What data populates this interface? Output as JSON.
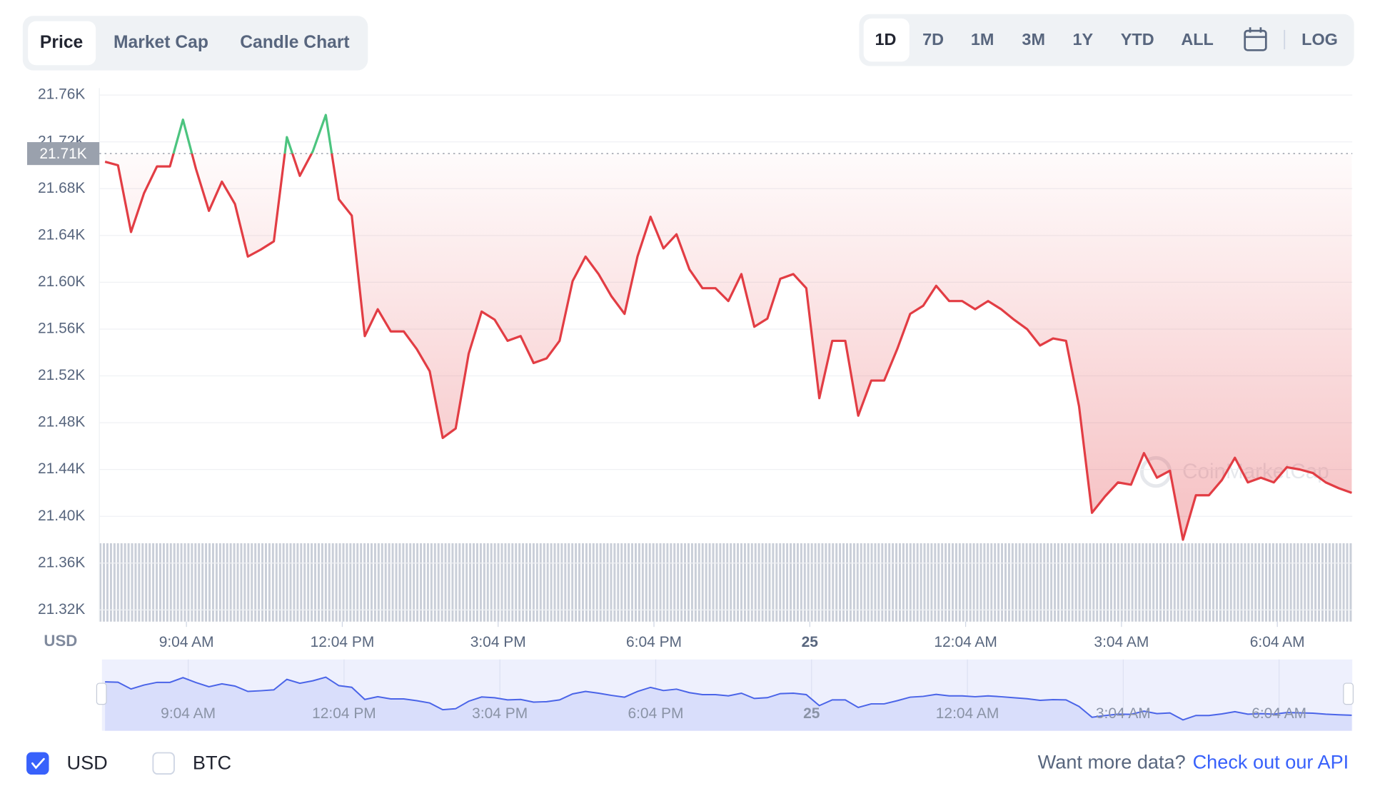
{
  "tabs": [
    "Price",
    "Market Cap",
    "Candle Chart"
  ],
  "ranges": [
    "1D",
    "7D",
    "1M",
    "3M",
    "1Y",
    "YTD",
    "ALL"
  ],
  "log_button": "LOG",
  "currencies": [
    {
      "label": "USD",
      "checked": true
    },
    {
      "label": "BTC",
      "checked": false
    }
  ],
  "footer": {
    "prompt": "Want more data?",
    "link": "Check out our API"
  },
  "chart_data": {
    "type": "line",
    "y_unit": "USD",
    "watermark": "CoinMarketCap",
    "reference": {
      "value": 21710,
      "label": "21.71K"
    },
    "up_color": "#4cc47f",
    "down_color": "#e23d44",
    "navigator_color": "#4a64e8",
    "grid": true,
    "xlim": [
      7.39,
      31.51
    ],
    "xticks": [
      {
        "value": 9.067,
        "label": "9:04 AM"
      },
      {
        "value": 12.067,
        "label": "12:04 PM"
      },
      {
        "value": 15.067,
        "label": "3:04 PM"
      },
      {
        "value": 18.067,
        "label": "6:04 PM"
      },
      {
        "value": 21.067,
        "label": "25"
      },
      {
        "value": 24.067,
        "label": "12:04 AM"
      },
      {
        "value": 27.067,
        "label": "3:04 AM"
      },
      {
        "value": 30.067,
        "label": "6:04 AM"
      }
    ],
    "ylim": [
      21310,
      21766
    ],
    "yticks": [
      {
        "value": 21320,
        "label": "21.32K"
      },
      {
        "value": 21360,
        "label": "21.36K"
      },
      {
        "value": 21400,
        "label": "21.40K"
      },
      {
        "value": 21440,
        "label": "21.44K"
      },
      {
        "value": 21480,
        "label": "21.48K"
      },
      {
        "value": 21520,
        "label": "21.52K"
      },
      {
        "value": 21560,
        "label": "21.56K"
      },
      {
        "value": 21600,
        "label": "21.60K"
      },
      {
        "value": 21640,
        "label": "21.64K"
      },
      {
        "value": 21680,
        "label": "21.68K"
      },
      {
        "value": 21720,
        "label": "21.72K"
      },
      {
        "value": 21760,
        "label": "21.76K"
      }
    ],
    "x": [
      7.5,
      7.75,
      8,
      8.25,
      8.5,
      8.75,
      9,
      9.25,
      9.5,
      9.75,
      10,
      10.25,
      10.5,
      10.75,
      11,
      11.25,
      11.5,
      11.75,
      12,
      12.25,
      12.5,
      12.75,
      13,
      13.25,
      13.5,
      13.75,
      14,
      14.25,
      14.5,
      14.75,
      15,
      15.25,
      15.5,
      15.75,
      16,
      16.25,
      16.5,
      16.75,
      17,
      17.25,
      17.5,
      17.75,
      18,
      18.25,
      18.5,
      18.75,
      19,
      19.25,
      19.5,
      19.75,
      20,
      20.25,
      20.5,
      20.75,
      21,
      21.25,
      21.5,
      21.75,
      22,
      22.25,
      22.5,
      22.75,
      23,
      23.25,
      23.5,
      23.75,
      24,
      24.25,
      24.5,
      24.75,
      25,
      25.25,
      25.5,
      25.75,
      26,
      26.25,
      26.5,
      26.75,
      27,
      27.25,
      27.5,
      27.75,
      28,
      28.25,
      28.5,
      28.75,
      29,
      29.25,
      29.5,
      29.75,
      30,
      30.25,
      30.5,
      30.75,
      31,
      31.25,
      31.5
    ],
    "values": [
      21703,
      21700,
      21643,
      21676,
      21699,
      21699,
      21739,
      21697,
      21661,
      21686,
      21667,
      21622,
      21628,
      21635,
      21724,
      21691,
      21712,
      21743,
      21671,
      21657,
      21554,
      21577,
      21558,
      21558,
      21543,
      21524,
      21467,
      21475,
      21539,
      21575,
      21568,
      21550,
      21554,
      21531,
      21535,
      21550,
      21601,
      21622,
      21607,
      21588,
      21573,
      21622,
      21656,
      21629,
      21641,
      21611,
      21595,
      21595,
      21584,
      21607,
      21562,
      21569,
      21603,
      21607,
      21595,
      21501,
      21550,
      21550,
      21486,
      21516,
      21516,
      21543,
      21573,
      21580,
      21597,
      21584,
      21584,
      21577,
      21584,
      21577,
      21568,
      21560,
      21546,
      21552,
      21550,
      21494,
      21403,
      21417,
      21429,
      21427,
      21454,
      21433,
      21439,
      21380,
      21418,
      21418,
      21431,
      21450,
      21429,
      21433,
      21429,
      21442,
      21440,
      21437,
      21429,
      21424,
      21420
    ]
  }
}
